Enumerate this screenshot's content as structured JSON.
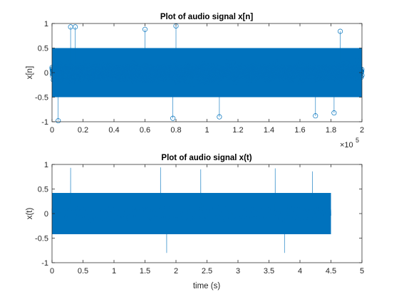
{
  "chart_data": [
    {
      "type": "scatter",
      "style": "stem-markers",
      "title": "Plot of audio signal x[n]",
      "xlabel": "",
      "ylabel": "x[n]",
      "xlim": [
        0,
        200000
      ],
      "ylim": [
        -1,
        1
      ],
      "x_ticks": [
        0,
        20000,
        40000,
        60000,
        80000,
        100000,
        120000,
        140000,
        160000,
        180000,
        200000
      ],
      "x_tick_labels": [
        "0",
        "0.2",
        "0.4",
        "0.6",
        "0.8",
        "1",
        "1.2",
        "1.4",
        "1.6",
        "1.8",
        "2"
      ],
      "x_exponent_base": "×10",
      "x_exponent_power": "5",
      "y_ticks": [
        -1,
        -0.5,
        0,
        0.5,
        1
      ],
      "y_tick_labels": [
        "-1",
        "-0.5",
        "0",
        "0.5",
        "1"
      ],
      "grid": false,
      "color": "#0072BD",
      "data_extent": [
        0,
        200000
      ],
      "amplitude": 0.6,
      "outliers": [
        {
          "x": 4000,
          "y": -0.98
        },
        {
          "x": 12000,
          "y": 0.93
        },
        {
          "x": 15000,
          "y": 0.93
        },
        {
          "x": 60000,
          "y": 0.88
        },
        {
          "x": 78000,
          "y": -0.93
        },
        {
          "x": 80000,
          "y": 0.95
        },
        {
          "x": 108000,
          "y": -0.9
        },
        {
          "x": 170000,
          "y": -0.88
        },
        {
          "x": 182000,
          "y": -0.82
        },
        {
          "x": 186000,
          "y": 0.84
        }
      ]
    },
    {
      "type": "line",
      "title": "Plot of audio signal x(t)",
      "xlabel": "time (s)",
      "ylabel": "x(t)",
      "xlim": [
        0,
        5
      ],
      "ylim": [
        -1,
        1
      ],
      "x_ticks": [
        0,
        0.5,
        1,
        1.5,
        2,
        2.5,
        3,
        3.5,
        4,
        4.5,
        5
      ],
      "x_tick_labels": [
        "0",
        "0.5",
        "1",
        "1.5",
        "2",
        "2.5",
        "3",
        "3.5",
        "4",
        "4.5",
        "5"
      ],
      "y_ticks": [
        -1,
        -0.5,
        0,
        0.5,
        1
      ],
      "y_tick_labels": [
        "-1",
        "-0.5",
        "0",
        "0.5",
        "1"
      ],
      "grid": false,
      "color": "#0072BD",
      "data_extent": [
        0,
        4.5
      ],
      "amplitude": 0.55,
      "outliers": [
        {
          "x": 0.3,
          "y": 0.93
        },
        {
          "x": 1.75,
          "y": 0.94
        },
        {
          "x": 1.85,
          "y": -0.8
        },
        {
          "x": 2.4,
          "y": 0.9
        },
        {
          "x": 3.6,
          "y": 0.92
        },
        {
          "x": 3.75,
          "y": -0.8
        },
        {
          "x": 4.2,
          "y": 0.86
        }
      ]
    }
  ]
}
